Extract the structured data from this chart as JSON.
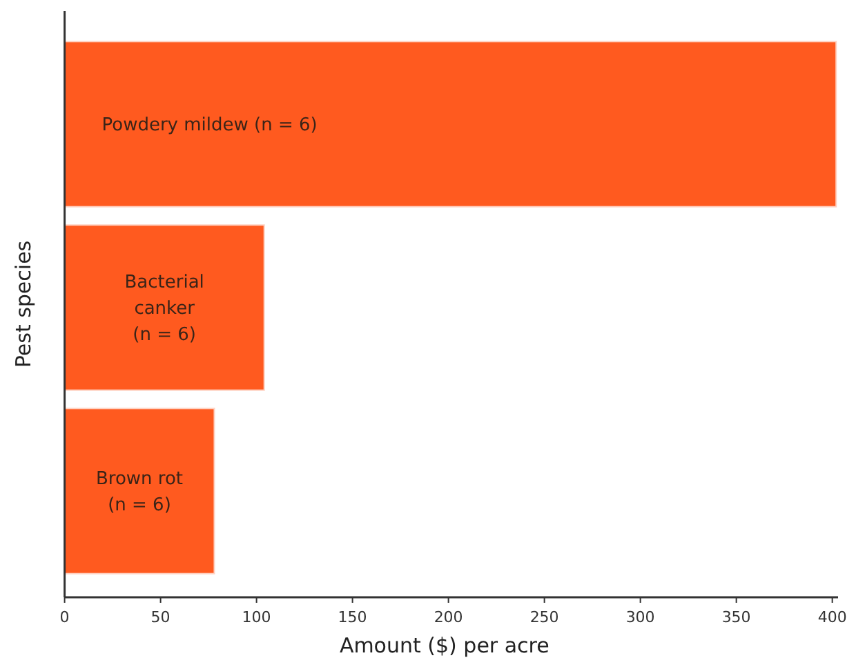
{
  "chart_data": {
    "type": "bar",
    "orientation": "horizontal",
    "xlabel": "Amount ($) per acre",
    "ylabel": "Pest species",
    "categories": [
      "Powdery mildew (n = 6)",
      "Bacterial canker (n = 6)",
      "Brown rot (n = 6)"
    ],
    "values": [
      402,
      104,
      78
    ],
    "color": "#ff5a1f",
    "xlim": [
      0,
      403
    ],
    "xticks": [
      0,
      50,
      100,
      150,
      200,
      250,
      300,
      350,
      400
    ],
    "grid": false
  }
}
